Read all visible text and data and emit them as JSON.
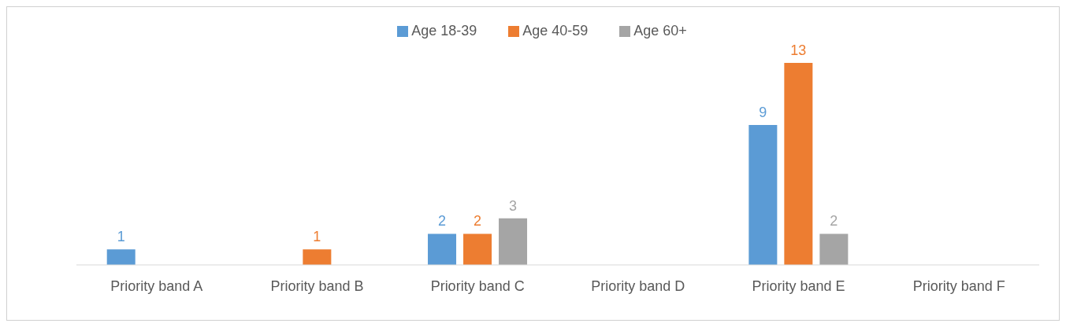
{
  "chart_data": {
    "type": "bar",
    "categories": [
      "Priority band A",
      "Priority band B",
      "Priority band C",
      "Priority band D",
      "Priority band E",
      "Priority band F"
    ],
    "series": [
      {
        "name": "Age 18-39",
        "color": "#5b9bd5",
        "values": [
          1,
          null,
          2,
          null,
          9,
          null
        ]
      },
      {
        "name": "Age 40-59",
        "color": "#ed7d31",
        "values": [
          null,
          1,
          2,
          null,
          13,
          null
        ]
      },
      {
        "name": "Age 60+",
        "color": "#a5a5a5",
        "values": [
          null,
          null,
          3,
          null,
          2,
          null
        ]
      }
    ],
    "data_labels": true,
    "legend": "top",
    "grid": false
  }
}
